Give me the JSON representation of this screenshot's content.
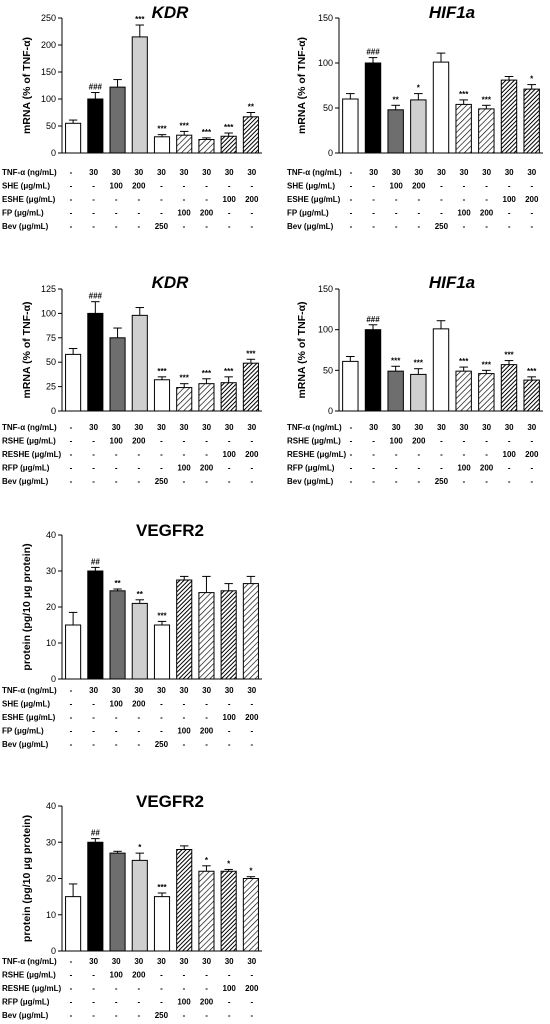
{
  "colors": {
    "c0": "#ffffff",
    "c1": "#000000",
    "c2": "#6e6e6e",
    "c3": "#cfcfcf",
    "c4": "#ffffff"
  },
  "chart_data": [
    {
      "type": "bar",
      "title": "KDR",
      "title_italic": true,
      "ylabel": "mRNA (% of TNF-α)",
      "ylim": [
        0,
        250
      ],
      "yticks": [
        0,
        50,
        100,
        150,
        200,
        250
      ],
      "values": [
        55,
        100,
        122,
        215,
        30,
        33,
        25,
        31,
        67
      ],
      "errors": [
        6,
        12,
        14,
        22,
        4,
        7,
        3,
        6,
        8
      ],
      "colors": [
        "c0",
        "c1",
        "c2",
        "c3",
        "c4",
        "h1",
        "h1",
        "h2",
        "h2"
      ],
      "annotations": [
        "",
        "###",
        "",
        "***",
        "***",
        "***",
        "***",
        "***",
        "**"
      ],
      "conditions": [
        {
          "label": "TNF-α (ng/mL)",
          "values": [
            "-",
            "30",
            "30",
            "30",
            "30",
            "30",
            "30",
            "30",
            "30"
          ]
        },
        {
          "label": "SHE (μg/mL)",
          "values": [
            "-",
            "-",
            "100",
            "200",
            "-",
            "-",
            "-",
            "-",
            "-"
          ]
        },
        {
          "label": "ESHE (μg/mL)",
          "values": [
            "-",
            "-",
            "-",
            "-",
            "-",
            "-",
            "-",
            "100",
            "200"
          ]
        },
        {
          "label": "FP (μg/mL)",
          "values": [
            "-",
            "-",
            "-",
            "-",
            "-",
            "100",
            "200",
            "-",
            "-"
          ]
        },
        {
          "label": "Bev (μg/mL)",
          "values": [
            "-",
            "-",
            "-",
            "-",
            "250",
            "-",
            "-",
            "-",
            "-"
          ]
        }
      ]
    },
    {
      "type": "bar",
      "title": "HIF1a",
      "title_italic": true,
      "ylabel": "mRNA (% of TNF-α)",
      "ylim": [
        0,
        150
      ],
      "yticks": [
        0,
        50,
        100,
        150
      ],
      "values": [
        60,
        100,
        48,
        59,
        101,
        54,
        49,
        81,
        71
      ],
      "errors": [
        6,
        6,
        5,
        7,
        10,
        5,
        4,
        4,
        5
      ],
      "colors": [
        "c0",
        "c1",
        "c2",
        "c3",
        "c4",
        "h1",
        "h1",
        "h2",
        "h2"
      ],
      "annotations": [
        "",
        "###",
        "**",
        "*",
        "",
        "***",
        "***",
        "",
        "*"
      ],
      "conditions": [
        {
          "label": "TNF-α (ng/mL)",
          "values": [
            "-",
            "30",
            "30",
            "30",
            "30",
            "30",
            "30",
            "30",
            "30"
          ]
        },
        {
          "label": "SHE (μg/mL)",
          "values": [
            "-",
            "-",
            "100",
            "200",
            "-",
            "-",
            "-",
            "-",
            "-"
          ]
        },
        {
          "label": "ESHE (μg/mL)",
          "values": [
            "-",
            "-",
            "-",
            "-",
            "-",
            "-",
            "-",
            "100",
            "200"
          ]
        },
        {
          "label": "FP (μg/mL)",
          "values": [
            "-",
            "-",
            "-",
            "-",
            "-",
            "100",
            "200",
            "-",
            "-"
          ]
        },
        {
          "label": "Bev (μg/mL)",
          "values": [
            "-",
            "-",
            "-",
            "-",
            "250",
            "-",
            "-",
            "-",
            "-"
          ]
        }
      ]
    },
    {
      "type": "bar",
      "title": "KDR",
      "title_italic": true,
      "ylabel": "mRNA (% of TNF-α)",
      "ylim": [
        0,
        125
      ],
      "yticks": [
        0,
        25,
        50,
        75,
        100,
        125
      ],
      "values": [
        58,
        100,
        75,
        98,
        32,
        24,
        28,
        29,
        49
      ],
      "errors": [
        6,
        12,
        10,
        8,
        3,
        4,
        5,
        6,
        4
      ],
      "colors": [
        "c0",
        "c1",
        "c2",
        "c3",
        "c4",
        "h1",
        "h1",
        "h2",
        "h2"
      ],
      "annotations": [
        "",
        "###",
        "",
        "",
        "***",
        "***",
        "***",
        "***",
        "***"
      ],
      "conditions": [
        {
          "label": "TNF-α (ng/mL)",
          "values": [
            "-",
            "30",
            "30",
            "30",
            "30",
            "30",
            "30",
            "30",
            "30"
          ]
        },
        {
          "label": "RSHE (μg/mL)",
          "values": [
            "-",
            "-",
            "100",
            "200",
            "-",
            "-",
            "-",
            "-",
            "-"
          ]
        },
        {
          "label": "RESHE (μg/mL)",
          "values": [
            "-",
            "-",
            "-",
            "-",
            "-",
            "-",
            "-",
            "100",
            "200"
          ]
        },
        {
          "label": "RFP (μg/mL)",
          "values": [
            "-",
            "-",
            "-",
            "-",
            "-",
            "100",
            "200",
            "-",
            "-"
          ]
        },
        {
          "label": "Bev (μg/mL)",
          "values": [
            "-",
            "-",
            "-",
            "-",
            "250",
            "-",
            "-",
            "-",
            "-"
          ]
        }
      ]
    },
    {
      "type": "bar",
      "title": "HIF1a",
      "title_italic": true,
      "ylabel": "mRNA (% of TNF-α)",
      "ylim": [
        0,
        150
      ],
      "yticks": [
        0,
        50,
        100,
        150
      ],
      "values": [
        61,
        100,
        49,
        45,
        101,
        49,
        46,
        57,
        38
      ],
      "errors": [
        6,
        6,
        6,
        7,
        10,
        5,
        4,
        5,
        4
      ],
      "colors": [
        "c0",
        "c1",
        "c2",
        "c3",
        "c4",
        "h1",
        "h1",
        "h2",
        "h2"
      ],
      "annotations": [
        "",
        "###",
        "***",
        "***",
        "",
        "***",
        "***",
        "***",
        "***"
      ],
      "conditions": [
        {
          "label": "TNF-α (ng/mL)",
          "values": [
            "-",
            "30",
            "30",
            "30",
            "30",
            "30",
            "30",
            "30",
            "30"
          ]
        },
        {
          "label": "RSHE (μg/mL)",
          "values": [
            "-",
            "-",
            "100",
            "200",
            "-",
            "-",
            "-",
            "-",
            "-"
          ]
        },
        {
          "label": "RESHE (μg/mL)",
          "values": [
            "-",
            "-",
            "-",
            "-",
            "-",
            "-",
            "-",
            "100",
            "200"
          ]
        },
        {
          "label": "RFP (μg/mL)",
          "values": [
            "-",
            "-",
            "-",
            "-",
            "-",
            "100",
            "200",
            "-",
            "-"
          ]
        },
        {
          "label": "Bev (μg/mL)",
          "values": [
            "-",
            "-",
            "-",
            "-",
            "250",
            "-",
            "-",
            "-",
            "-"
          ]
        }
      ]
    },
    {
      "type": "bar",
      "title": "VEGFR2",
      "title_italic": false,
      "ylabel": "protein (pg/10 μg protein)",
      "ylim": [
        0,
        40
      ],
      "yticks": [
        0,
        10,
        20,
        30,
        40
      ],
      "values": [
        15,
        30,
        24.5,
        21,
        15,
        27.5,
        24,
        24.5,
        26.5
      ],
      "errors": [
        3.5,
        1,
        0.5,
        1,
        1,
        1,
        4.5,
        2,
        2
      ],
      "colors": [
        "c0",
        "c1",
        "c2",
        "c3",
        "c4",
        "h2",
        "h1",
        "h2",
        "h1"
      ],
      "annotations": [
        "",
        "##",
        "**",
        "**",
        "***",
        "",
        "",
        "",
        ""
      ],
      "conditions": [
        {
          "label": "TNF-α (ng/mL)",
          "values": [
            "-",
            "30",
            "30",
            "30",
            "30",
            "30",
            "30",
            "30",
            "30"
          ]
        },
        {
          "label": "SHE (μg/mL)",
          "values": [
            "-",
            "-",
            "100",
            "200",
            "-",
            "-",
            "-",
            "-",
            "-"
          ]
        },
        {
          "label": "ESHE (μg/mL)",
          "values": [
            "-",
            "-",
            "-",
            "-",
            "-",
            "-",
            "-",
            "100",
            "200"
          ]
        },
        {
          "label": "FP (μg/mL)",
          "values": [
            "-",
            "-",
            "-",
            "-",
            "-",
            "100",
            "200",
            "-",
            "-"
          ]
        },
        {
          "label": "Bev (μg/mL)",
          "values": [
            "-",
            "-",
            "-",
            "-",
            "250",
            "-",
            "-",
            "-",
            "-"
          ]
        }
      ]
    },
    {
      "type": "bar",
      "title": "VEGFR2",
      "title_italic": false,
      "ylabel": "protein (pg/10 μg protein)",
      "ylim": [
        0,
        40
      ],
      "yticks": [
        0,
        10,
        20,
        30,
        40
      ],
      "values": [
        15,
        30,
        27,
        25,
        15,
        28,
        22,
        22,
        20
      ],
      "errors": [
        3.5,
        1,
        0.5,
        2,
        1,
        1,
        1.5,
        0.5,
        0.5
      ],
      "colors": [
        "c0",
        "c1",
        "c2",
        "c3",
        "c4",
        "h2",
        "h1",
        "h2",
        "h1"
      ],
      "annotations": [
        "",
        "##",
        "",
        "*",
        "***",
        "",
        "*",
        "*",
        "*"
      ],
      "conditions": [
        {
          "label": "TNF-α (ng/mL)",
          "values": [
            "-",
            "30",
            "30",
            "30",
            "30",
            "30",
            "30",
            "30",
            "30"
          ]
        },
        {
          "label": "RSHE (μg/mL)",
          "values": [
            "-",
            "-",
            "100",
            "200",
            "-",
            "-",
            "-",
            "-",
            "-"
          ]
        },
        {
          "label": "RESHE (μg/mL)",
          "values": [
            "-",
            "-",
            "-",
            "-",
            "-",
            "-",
            "-",
            "100",
            "200"
          ]
        },
        {
          "label": "RFP (μg/mL)",
          "values": [
            "-",
            "-",
            "-",
            "-",
            "-",
            "100",
            "200",
            "-",
            "-"
          ]
        },
        {
          "label": "Bev (μg/mL)",
          "values": [
            "-",
            "-",
            "-",
            "-",
            "250",
            "-",
            "-",
            "-",
            "-"
          ]
        }
      ]
    }
  ]
}
